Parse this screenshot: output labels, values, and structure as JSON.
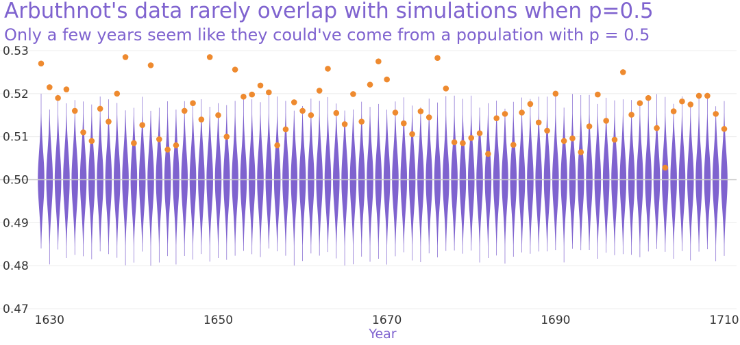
{
  "title": "Arbuthnot's data rarely overlap with simulations when p=0.5",
  "subtitle": "Only a few years seem like they could've come from a population with p = 0.5",
  "colors": {
    "violin": "#7f63cf",
    "point": "#ee8a2f",
    "refline": "#c9c9c9",
    "grid": "#ececec",
    "title": "#7f63cf"
  },
  "chart_data": {
    "type": "scatter",
    "title": "Arbuthnot's data rarely overlap with simulations when p=0.5",
    "subtitle": "Only a few years seem like they could've come from a population with p = 0.5",
    "xlabel": "Year",
    "ylabel": "",
    "xlim": [
      1629,
      1710
    ],
    "ylim": [
      0.47,
      0.53
    ],
    "x_ticks": [
      "1630",
      "1650",
      "1670",
      "1690",
      "1710"
    ],
    "y_ticks": [
      "0.47",
      "0.48",
      "0.49",
      "0.50",
      "0.51",
      "0.52",
      "0.53"
    ],
    "reference_line": 0.5,
    "grid": true,
    "simulations": {
      "type": "violin",
      "center": 0.5,
      "typical_range": [
        0.486,
        0.514
      ]
    },
    "series": [
      {
        "x": [
          1629,
          1630,
          1631,
          1632,
          1633,
          1634,
          1635,
          1636,
          1637,
          1638,
          1639,
          1640,
          1641,
          1642,
          1643,
          1644,
          1645,
          1646,
          1647,
          1648,
          1649,
          1650,
          1651,
          1652,
          1653,
          1654,
          1655,
          1656,
          1657,
          1658,
          1659,
          1660,
          1661,
          1662,
          1663,
          1664,
          1665,
          1666,
          1667,
          1668,
          1669,
          1670,
          1671,
          1672,
          1673,
          1674,
          1675,
          1676,
          1677,
          1678,
          1679,
          1680,
          1681,
          1682,
          1683,
          1684,
          1685,
          1686,
          1687,
          1688,
          1689,
          1690,
          1691,
          1692,
          1693,
          1694,
          1695,
          1696,
          1697,
          1698,
          1699,
          1700,
          1701,
          1702,
          1703,
          1704,
          1705,
          1706,
          1707,
          1708,
          1709,
          1710
        ],
        "y": [
          0.527,
          0.5215,
          0.519,
          0.521,
          0.516,
          0.511,
          0.509,
          0.5165,
          0.5135,
          0.52,
          0.5285,
          0.5085,
          0.5127,
          0.5266,
          0.5094,
          0.507,
          0.508,
          0.516,
          0.5178,
          0.514,
          0.5285,
          0.515,
          0.51,
          0.5256,
          0.5193,
          0.5198,
          0.5219,
          0.5203,
          0.508,
          0.5117,
          0.518,
          0.516,
          0.515,
          0.5207,
          0.5258,
          0.5155,
          0.5129,
          0.5199,
          0.5135,
          0.5221,
          0.5275,
          0.5233,
          0.5156,
          0.5131,
          0.5106,
          0.5159,
          0.5145,
          0.5283,
          0.5212,
          0.5087,
          0.5085,
          0.5097,
          0.5108,
          0.506,
          0.5143,
          0.5153,
          0.5081,
          0.5156,
          0.5176,
          0.5133,
          0.5114,
          0.52,
          0.509,
          0.5096,
          0.5064,
          0.5124,
          0.5198,
          0.5137,
          0.5093,
          0.525,
          0.5151,
          0.5178,
          0.519,
          0.512,
          0.5028,
          0.5159,
          0.5182,
          0.5175,
          0.5195,
          0.5195,
          0.5153,
          0.5118
        ]
      }
    ]
  }
}
